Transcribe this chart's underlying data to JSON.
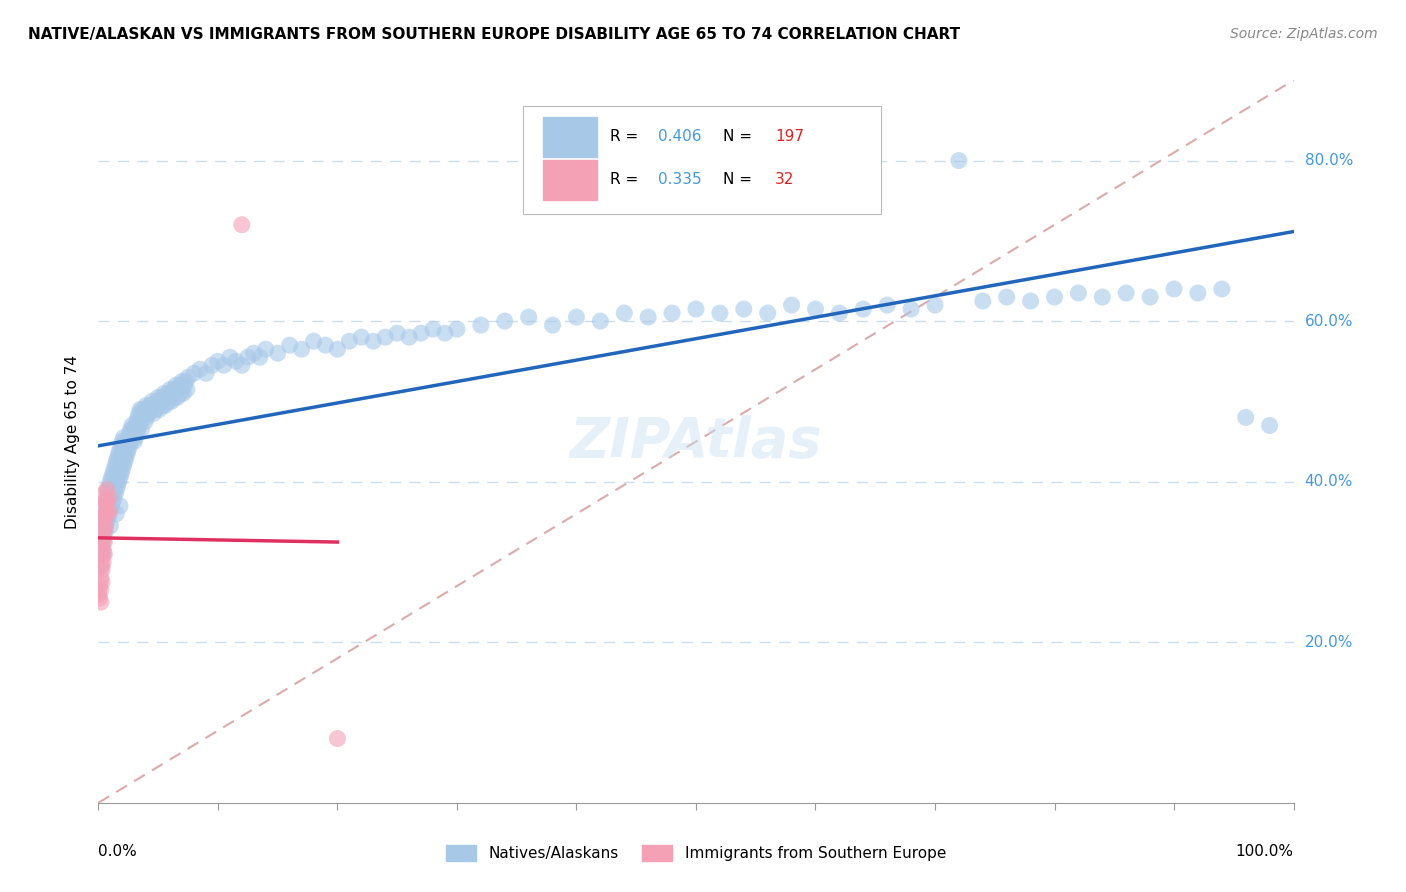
{
  "title": "NATIVE/ALASKAN VS IMMIGRANTS FROM SOUTHERN EUROPE DISABILITY AGE 65 TO 74 CORRELATION CHART",
  "source": "Source: ZipAtlas.com",
  "ylabel": "Disability Age 65 to 74",
  "legend_blue_r": "0.406",
  "legend_blue_n": "197",
  "legend_pink_r": "0.335",
  "legend_pink_n": "32",
  "legend_blue_label": "Natives/Alaskans",
  "legend_pink_label": "Immigrants from Southern Europe",
  "blue_color": "#a8c8e8",
  "pink_color": "#f4a0b5",
  "blue_line_color": "#2266bb",
  "pink_line_color": "#e03060",
  "diag_line_color": "#ddaaaa",
  "r_value_color": "#4499dd",
  "n_value_color": "#dd2222",
  "blue_scatter": [
    [
      0.001,
      0.315
    ],
    [
      0.002,
      0.295
    ],
    [
      0.002,
      0.33
    ],
    [
      0.003,
      0.34
    ],
    [
      0.003,
      0.32
    ],
    [
      0.004,
      0.345
    ],
    [
      0.004,
      0.325
    ],
    [
      0.004,
      0.31
    ],
    [
      0.005,
      0.35
    ],
    [
      0.005,
      0.335
    ],
    [
      0.005,
      0.36
    ],
    [
      0.006,
      0.355
    ],
    [
      0.006,
      0.34
    ],
    [
      0.006,
      0.375
    ],
    [
      0.007,
      0.365
    ],
    [
      0.007,
      0.35
    ],
    [
      0.007,
      0.38
    ],
    [
      0.008,
      0.37
    ],
    [
      0.008,
      0.355
    ],
    [
      0.008,
      0.39
    ],
    [
      0.009,
      0.375
    ],
    [
      0.009,
      0.36
    ],
    [
      0.009,
      0.395
    ],
    [
      0.01,
      0.38
    ],
    [
      0.01,
      0.365
    ],
    [
      0.01,
      0.4
    ],
    [
      0.01,
      0.345
    ],
    [
      0.011,
      0.385
    ],
    [
      0.011,
      0.37
    ],
    [
      0.011,
      0.405
    ],
    [
      0.012,
      0.39
    ],
    [
      0.012,
      0.375
    ],
    [
      0.012,
      0.41
    ],
    [
      0.013,
      0.395
    ],
    [
      0.013,
      0.38
    ],
    [
      0.013,
      0.415
    ],
    [
      0.014,
      0.4
    ],
    [
      0.014,
      0.385
    ],
    [
      0.014,
      0.42
    ],
    [
      0.015,
      0.405
    ],
    [
      0.015,
      0.39
    ],
    [
      0.015,
      0.425
    ],
    [
      0.015,
      0.36
    ],
    [
      0.016,
      0.41
    ],
    [
      0.016,
      0.395
    ],
    [
      0.016,
      0.43
    ],
    [
      0.017,
      0.415
    ],
    [
      0.017,
      0.4
    ],
    [
      0.017,
      0.435
    ],
    [
      0.018,
      0.42
    ],
    [
      0.018,
      0.405
    ],
    [
      0.018,
      0.44
    ],
    [
      0.018,
      0.37
    ],
    [
      0.019,
      0.425
    ],
    [
      0.019,
      0.41
    ],
    [
      0.019,
      0.445
    ],
    [
      0.02,
      0.43
    ],
    [
      0.02,
      0.415
    ],
    [
      0.02,
      0.45
    ],
    [
      0.021,
      0.435
    ],
    [
      0.021,
      0.42
    ],
    [
      0.021,
      0.455
    ],
    [
      0.022,
      0.44
    ],
    [
      0.022,
      0.425
    ],
    [
      0.023,
      0.445
    ],
    [
      0.023,
      0.43
    ],
    [
      0.024,
      0.45
    ],
    [
      0.024,
      0.435
    ],
    [
      0.025,
      0.455
    ],
    [
      0.025,
      0.44
    ],
    [
      0.026,
      0.46
    ],
    [
      0.026,
      0.445
    ],
    [
      0.027,
      0.465
    ],
    [
      0.027,
      0.45
    ],
    [
      0.028,
      0.47
    ],
    [
      0.028,
      0.455
    ],
    [
      0.029,
      0.46
    ],
    [
      0.03,
      0.465
    ],
    [
      0.03,
      0.45
    ],
    [
      0.031,
      0.47
    ],
    [
      0.031,
      0.455
    ],
    [
      0.032,
      0.475
    ],
    [
      0.032,
      0.46
    ],
    [
      0.033,
      0.48
    ],
    [
      0.033,
      0.465
    ],
    [
      0.034,
      0.485
    ],
    [
      0.034,
      0.47
    ],
    [
      0.035,
      0.49
    ],
    [
      0.035,
      0.475
    ],
    [
      0.036,
      0.48
    ],
    [
      0.036,
      0.465
    ],
    [
      0.037,
      0.49
    ],
    [
      0.038,
      0.485
    ],
    [
      0.039,
      0.475
    ],
    [
      0.04,
      0.48
    ],
    [
      0.04,
      0.495
    ],
    [
      0.041,
      0.49
    ],
    [
      0.042,
      0.485
    ],
    [
      0.043,
      0.495
    ],
    [
      0.044,
      0.49
    ],
    [
      0.045,
      0.5
    ],
    [
      0.046,
      0.485
    ],
    [
      0.047,
      0.495
    ],
    [
      0.048,
      0.49
    ],
    [
      0.049,
      0.5
    ],
    [
      0.05,
      0.505
    ],
    [
      0.051,
      0.49
    ],
    [
      0.052,
      0.5
    ],
    [
      0.053,
      0.505
    ],
    [
      0.054,
      0.495
    ],
    [
      0.055,
      0.51
    ],
    [
      0.056,
      0.495
    ],
    [
      0.057,
      0.505
    ],
    [
      0.058,
      0.51
    ],
    [
      0.059,
      0.5
    ],
    [
      0.06,
      0.515
    ],
    [
      0.061,
      0.5
    ],
    [
      0.062,
      0.51
    ],
    [
      0.063,
      0.515
    ],
    [
      0.064,
      0.505
    ],
    [
      0.065,
      0.52
    ],
    [
      0.066,
      0.505
    ],
    [
      0.067,
      0.515
    ],
    [
      0.068,
      0.52
    ],
    [
      0.069,
      0.51
    ],
    [
      0.07,
      0.525
    ],
    [
      0.071,
      0.51
    ],
    [
      0.072,
      0.52
    ],
    [
      0.073,
      0.525
    ],
    [
      0.074,
      0.515
    ],
    [
      0.075,
      0.53
    ],
    [
      0.08,
      0.535
    ],
    [
      0.085,
      0.54
    ],
    [
      0.09,
      0.535
    ],
    [
      0.095,
      0.545
    ],
    [
      0.1,
      0.55
    ],
    [
      0.105,
      0.545
    ],
    [
      0.11,
      0.555
    ],
    [
      0.115,
      0.55
    ],
    [
      0.12,
      0.545
    ],
    [
      0.125,
      0.555
    ],
    [
      0.13,
      0.56
    ],
    [
      0.135,
      0.555
    ],
    [
      0.14,
      0.565
    ],
    [
      0.15,
      0.56
    ],
    [
      0.16,
      0.57
    ],
    [
      0.17,
      0.565
    ],
    [
      0.18,
      0.575
    ],
    [
      0.19,
      0.57
    ],
    [
      0.2,
      0.565
    ],
    [
      0.21,
      0.575
    ],
    [
      0.22,
      0.58
    ],
    [
      0.23,
      0.575
    ],
    [
      0.24,
      0.58
    ],
    [
      0.25,
      0.585
    ],
    [
      0.26,
      0.58
    ],
    [
      0.27,
      0.585
    ],
    [
      0.28,
      0.59
    ],
    [
      0.29,
      0.585
    ],
    [
      0.3,
      0.59
    ],
    [
      0.32,
      0.595
    ],
    [
      0.34,
      0.6
    ],
    [
      0.36,
      0.605
    ],
    [
      0.38,
      0.595
    ],
    [
      0.4,
      0.605
    ],
    [
      0.42,
      0.6
    ],
    [
      0.44,
      0.61
    ],
    [
      0.46,
      0.605
    ],
    [
      0.48,
      0.61
    ],
    [
      0.5,
      0.615
    ],
    [
      0.52,
      0.61
    ],
    [
      0.54,
      0.615
    ],
    [
      0.56,
      0.61
    ],
    [
      0.58,
      0.62
    ],
    [
      0.6,
      0.615
    ],
    [
      0.62,
      0.61
    ],
    [
      0.64,
      0.615
    ],
    [
      0.66,
      0.62
    ],
    [
      0.68,
      0.615
    ],
    [
      0.7,
      0.62
    ],
    [
      0.72,
      0.8
    ],
    [
      0.74,
      0.625
    ],
    [
      0.76,
      0.63
    ],
    [
      0.78,
      0.625
    ],
    [
      0.8,
      0.63
    ],
    [
      0.82,
      0.635
    ],
    [
      0.84,
      0.63
    ],
    [
      0.86,
      0.635
    ],
    [
      0.88,
      0.63
    ],
    [
      0.9,
      0.64
    ],
    [
      0.92,
      0.635
    ],
    [
      0.94,
      0.64
    ],
    [
      0.96,
      0.48
    ],
    [
      0.98,
      0.47
    ]
  ],
  "pink_scatter": [
    [
      0.0,
      0.26
    ],
    [
      0.001,
      0.27
    ],
    [
      0.001,
      0.255
    ],
    [
      0.002,
      0.28
    ],
    [
      0.002,
      0.265
    ],
    [
      0.002,
      0.25
    ],
    [
      0.003,
      0.29
    ],
    [
      0.003,
      0.275
    ],
    [
      0.003,
      0.295
    ],
    [
      0.003,
      0.31
    ],
    [
      0.003,
      0.325
    ],
    [
      0.004,
      0.33
    ],
    [
      0.004,
      0.315
    ],
    [
      0.004,
      0.3
    ],
    [
      0.004,
      0.34
    ],
    [
      0.004,
      0.355
    ],
    [
      0.005,
      0.37
    ],
    [
      0.005,
      0.385
    ],
    [
      0.005,
      0.355
    ],
    [
      0.005,
      0.34
    ],
    [
      0.005,
      0.325
    ],
    [
      0.005,
      0.31
    ],
    [
      0.006,
      0.375
    ],
    [
      0.006,
      0.36
    ],
    [
      0.006,
      0.345
    ],
    [
      0.007,
      0.39
    ],
    [
      0.007,
      0.375
    ],
    [
      0.008,
      0.36
    ],
    [
      0.009,
      0.38
    ],
    [
      0.009,
      0.365
    ],
    [
      0.12,
      0.72
    ],
    [
      0.2,
      0.08
    ]
  ],
  "xlim": [
    0.0,
    1.0
  ],
  "ylim": [
    0.0,
    0.9
  ],
  "yticks": [
    0.2,
    0.4,
    0.6,
    0.8
  ],
  "ytick_labels": [
    "20.0%",
    "40.0%",
    "60.0%",
    "80.0%"
  ],
  "xtick_left": "0.0%",
  "xtick_right": "100.0%"
}
